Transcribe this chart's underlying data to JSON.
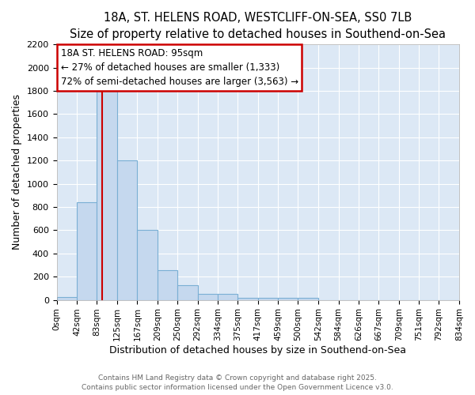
{
  "title1": "18A, ST. HELENS ROAD, WESTCLIFF-ON-SEA, SS0 7LB",
  "title2": "Size of property relative to detached houses in Southend-on-Sea",
  "xlabel": "Distribution of detached houses by size in Southend-on-Sea",
  "ylabel": "Number of detached properties",
  "bin_edges": [
    0,
    42,
    83,
    125,
    167,
    209,
    250,
    292,
    334,
    375,
    417,
    459,
    500,
    542,
    584,
    626,
    667,
    709,
    751,
    792,
    834
  ],
  "bar_heights": [
    25,
    840,
    1800,
    1200,
    600,
    255,
    125,
    50,
    50,
    20,
    20,
    20,
    15,
    0,
    0,
    0,
    0,
    0,
    0,
    0
  ],
  "bar_color": "#c5d8ee",
  "bar_edge_color": "#7aafd4",
  "property_size": 95,
  "red_line_color": "#cc0000",
  "annotation_text": "18A ST. HELENS ROAD: 95sqm\n← 27% of detached houses are smaller (1,333)\n72% of semi-detached houses are larger (3,563) →",
  "annotation_box_facecolor": "#ffffff",
  "annotation_box_edgecolor": "#cc0000",
  "ylim": [
    0,
    2200
  ],
  "yticks": [
    0,
    200,
    400,
    600,
    800,
    1000,
    1200,
    1400,
    1600,
    1800,
    2000,
    2200
  ],
  "xlim": [
    0,
    834
  ],
  "axes_bg": "#dce8f5",
  "fig_bg": "#ffffff",
  "footer_line1": "Contains HM Land Registry data © Crown copyright and database right 2025.",
  "footer_line2": "Contains public sector information licensed under the Open Government Licence v3.0.",
  "title_fontsize": 10.5,
  "subtitle_fontsize": 9.5,
  "tick_label_fontsize": 7.5,
  "ytick_fontsize": 8,
  "axis_label_fontsize": 9,
  "annotation_fontsize": 8.5,
  "footer_fontsize": 6.5
}
